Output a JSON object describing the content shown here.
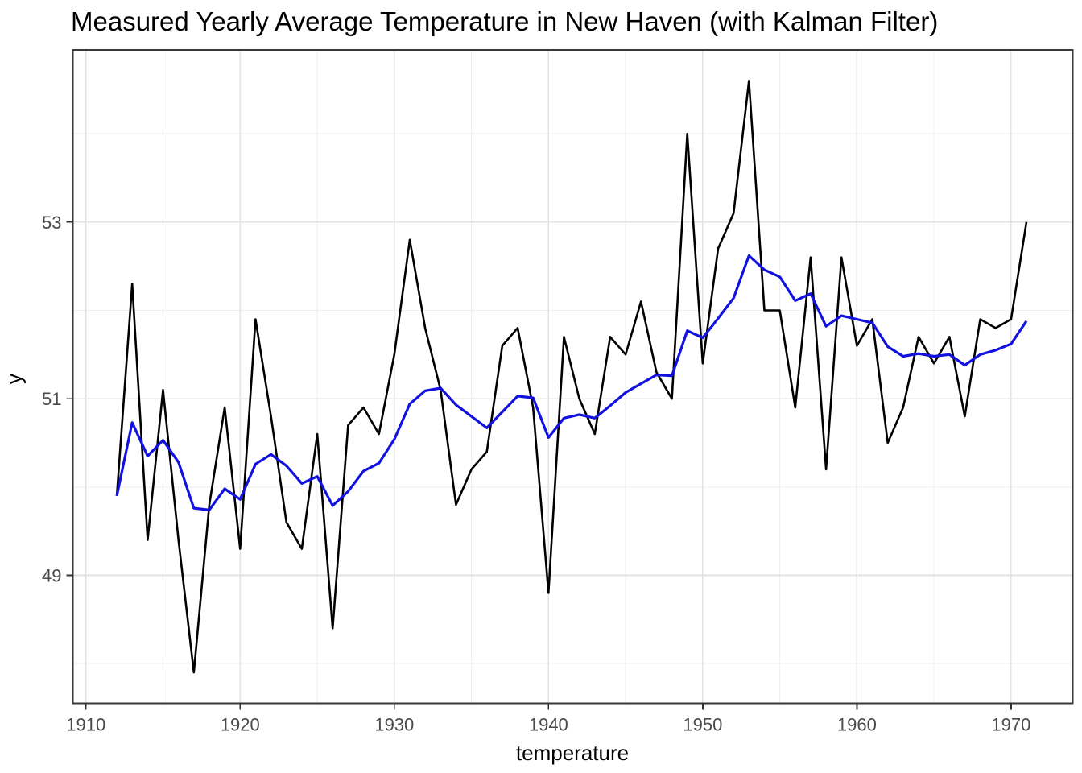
{
  "chart_data": {
    "type": "line",
    "title": "Measured Yearly Average Temperature in New Haven (with Kalman Filter)",
    "xlabel": "temperature",
    "ylabel": "y",
    "xlim": [
      1909.15,
      1974.0
    ],
    "ylim": [
      47.55,
      54.95
    ],
    "x_ticks_major": [
      1910,
      1920,
      1930,
      1940,
      1950,
      1960,
      1970
    ],
    "x_ticks_minor": [
      1915,
      1925,
      1935,
      1945,
      1955,
      1965
    ],
    "y_ticks_major": [
      49,
      51,
      53
    ],
    "y_ticks_minor": [
      48,
      50,
      52,
      54
    ],
    "grid": true,
    "legend": "none",
    "x": [
      1912,
      1913,
      1914,
      1915,
      1916,
      1917,
      1918,
      1919,
      1920,
      1921,
      1922,
      1923,
      1924,
      1925,
      1926,
      1927,
      1928,
      1929,
      1930,
      1931,
      1932,
      1933,
      1934,
      1935,
      1936,
      1937,
      1938,
      1939,
      1940,
      1941,
      1942,
      1943,
      1944,
      1945,
      1946,
      1947,
      1948,
      1949,
      1950,
      1951,
      1952,
      1953,
      1954,
      1955,
      1956,
      1957,
      1958,
      1959,
      1960,
      1961,
      1962,
      1963,
      1964,
      1965,
      1966,
      1967,
      1968,
      1969,
      1970,
      1971
    ],
    "series": [
      {
        "name": "measured",
        "color": "#000000",
        "stroke_width": 2.6,
        "values": [
          49.9,
          52.3,
          49.4,
          51.1,
          49.4,
          47.9,
          49.8,
          50.9,
          49.3,
          51.9,
          50.8,
          49.6,
          49.3,
          50.6,
          48.4,
          50.7,
          50.9,
          50.6,
          51.5,
          52.8,
          51.8,
          51.1,
          49.8,
          50.2,
          50.4,
          51.6,
          51.8,
          50.9,
          48.8,
          51.7,
          51.0,
          50.6,
          51.7,
          51.5,
          52.1,
          51.3,
          51.0,
          54.0,
          51.4,
          52.7,
          53.1,
          54.6,
          52.0,
          52.0,
          50.9,
          52.6,
          50.2,
          52.6,
          51.6,
          51.9,
          50.5,
          50.9,
          51.7,
          51.4,
          51.7,
          50.8,
          51.9,
          51.8,
          51.9,
          53.0
        ]
      },
      {
        "name": "kalman-filter",
        "color": "#1212e0",
        "stroke_width": 3.2,
        "values": [
          49.9,
          50.73,
          50.35,
          50.53,
          50.28,
          49.76,
          49.74,
          49.98,
          49.86,
          50.26,
          50.37,
          50.24,
          50.04,
          50.12,
          49.79,
          49.95,
          50.18,
          50.27,
          50.54,
          50.94,
          51.09,
          51.12,
          50.93,
          50.8,
          50.67,
          50.85,
          51.03,
          51.01,
          50.56,
          50.78,
          50.82,
          50.78,
          50.92,
          51.07,
          51.17,
          51.27,
          51.26,
          51.77,
          51.69,
          51.91,
          52.14,
          52.62,
          52.46,
          52.38,
          52.11,
          52.19,
          51.82,
          51.94,
          51.9,
          51.86,
          51.59,
          51.48,
          51.51,
          51.48,
          51.5,
          51.38,
          51.5,
          51.55,
          51.62,
          51.88
        ]
      }
    ],
    "colors": {
      "background": "#ffffff",
      "grid_major": "#e3e3e3",
      "grid_minor": "#efefef",
      "panel_border": "#383838",
      "tick_mark": "#333333",
      "tick_label": "#4a4a4a",
      "title": "#000000"
    }
  }
}
